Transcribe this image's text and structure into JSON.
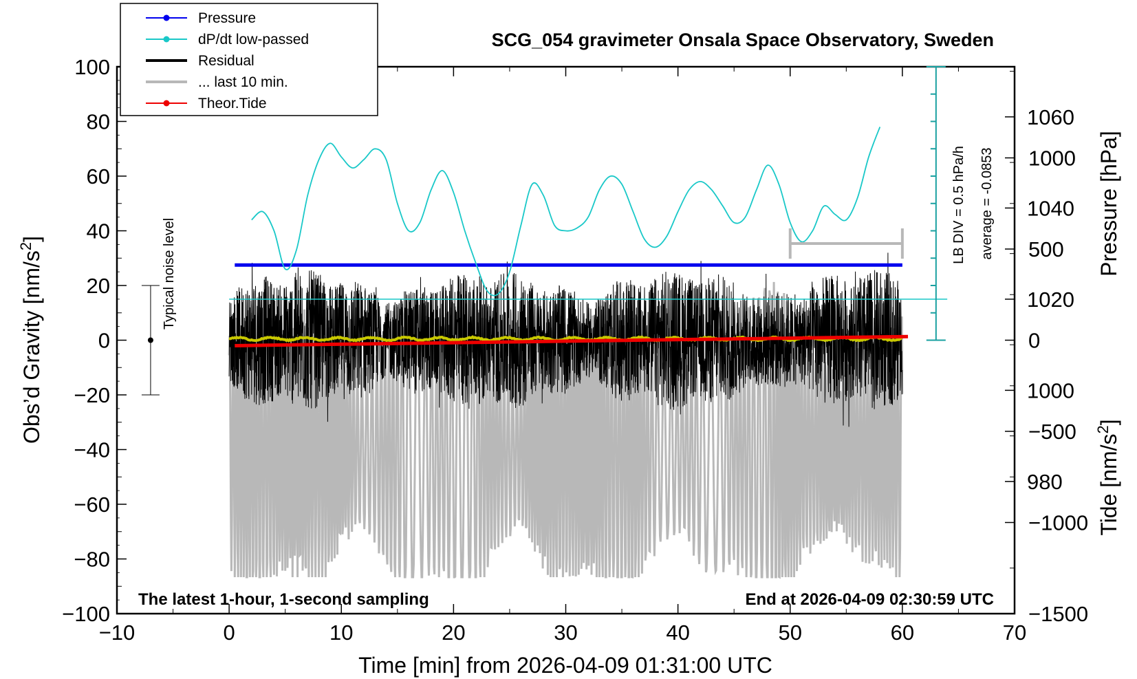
{
  "chart_data": {
    "type": "line",
    "title": "SCG_054 gravimeter Onsala Space Observatory, Sweden",
    "xlabel": "Time [min] from 2026-04-09 01:31:00 UTC",
    "ylabel_left": "Obs'd Gravity [nm/s²]",
    "ylabel_right_top": "Pressure [hPa]",
    "ylabel_right_bottom": "Tide [nm/s²]",
    "xlim": [
      -10,
      70
    ],
    "ylim": [
      -100,
      100
    ],
    "pressure_ylim": [
      951,
      1071
    ],
    "tide_ylim": [
      -1500,
      1500
    ],
    "x_ticks": [
      "−10",
      "0",
      "10",
      "20",
      "30",
      "40",
      "50",
      "60",
      "70"
    ],
    "y_ticks": [
      "100",
      "80",
      "60",
      "40",
      "20",
      "0",
      "−20",
      "−40",
      "−60",
      "−80",
      "−100"
    ],
    "pressure_ticks": [
      "1060",
      "1040",
      "1020",
      "1000",
      "980"
    ],
    "tide_ticks": [
      "1000",
      "500",
      "0",
      "−500",
      "−1000",
      "−1500"
    ],
    "annotation_left": "The latest 1-hour, 1-second sampling",
    "annotation_right": "End at 2026-04-09 02:30:59 UTC",
    "noise_label": "Typical noise level",
    "lb_div_label": "LB DIV = 0.5 hPa/h",
    "average_label": "average = -0.0853",
    "legend": [
      {
        "label": "Pressure",
        "color": "#0000ee",
        "style": "line-dot"
      },
      {
        "label": "dP/dt low-passed",
        "color": "#19c8c8",
        "style": "line-dot"
      },
      {
        "label": "Residual",
        "color": "#000000",
        "style": "thick-line"
      },
      {
        "label": "... last 10 min.",
        "color": "#b8b8b8",
        "style": "thick-line"
      },
      {
        "label": "Theor.Tide",
        "color": "#ee0000",
        "style": "line-dot"
      }
    ],
    "series": [
      {
        "name": "Pressure",
        "axis": "pressure",
        "color": "#0000ee",
        "x": [
          0.5,
          60
        ],
        "values": [
          1027.5,
          1027.5
        ]
      },
      {
        "name": "dP/dt low-passed",
        "axis": "left",
        "color": "#19c8c8",
        "x": [
          2,
          3,
          4,
          5,
          6,
          7,
          8,
          9,
          10,
          11,
          12,
          13,
          14,
          15,
          16,
          17,
          18,
          19,
          20,
          21,
          22,
          23,
          24,
          25,
          26,
          27,
          28,
          29,
          30,
          31,
          32,
          33,
          34,
          35,
          36,
          37,
          38,
          39,
          40,
          41,
          42,
          43,
          44,
          45,
          46,
          47,
          48,
          49,
          50,
          51,
          52,
          53,
          54,
          55,
          56,
          57,
          58
        ],
        "values": [
          44,
          47,
          40,
          26,
          33,
          53,
          66,
          72,
          67,
          63,
          66,
          70,
          66,
          50,
          40,
          43,
          55,
          62,
          54,
          40,
          28,
          18,
          17,
          25,
          42,
          57,
          53,
          42,
          40,
          41,
          45,
          55,
          60,
          57,
          47,
          37,
          34,
          38,
          47,
          55,
          58,
          55,
          49,
          43,
          45,
          55,
          64,
          57,
          43,
          36,
          40,
          49,
          46,
          44,
          52,
          67,
          78
        ]
      },
      {
        "name": "Theor.Tide",
        "axis": "tide",
        "color": "#ee0000",
        "x": [
          0.5,
          60.5
        ],
        "values": [
          -30,
          20
        ]
      },
      {
        "name": "Residual",
        "axis": "left",
        "color": "#000000",
        "x_range": [
          0,
          60
        ],
        "amplitude_range": [
          -40,
          40
        ],
        "mean": 0
      },
      {
        "name": "Residual low-passed",
        "axis": "left",
        "color": "#c8c800",
        "x_range": [
          0,
          60
        ],
        "mean": 0.5
      },
      {
        "name": "... last 10 min.",
        "axis": "tide",
        "color": "#b8b8b8",
        "x_range": [
          0,
          60
        ],
        "amplitude_range": [
          -1300,
          600
        ]
      }
    ],
    "last10_marker": {
      "x": [
        50,
        60
      ],
      "tide_value": 500
    },
    "noise_bar": {
      "x": -7,
      "low": -20,
      "high": 20,
      "center": 0
    }
  }
}
